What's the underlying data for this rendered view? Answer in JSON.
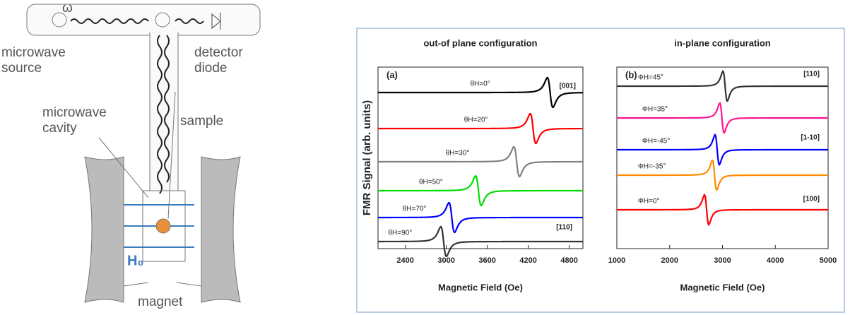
{
  "diagram": {
    "labels": {
      "omega": "ω",
      "source": "microwave\nsource",
      "detector": "detector\ndiode",
      "cavity": "microwave\ncavity",
      "sample": "sample",
      "field": "H₀",
      "magnet": "magnet"
    }
  },
  "chart_data": [
    {
      "type": "line",
      "title": "out-of plane configuration",
      "panel": "(a)",
      "xlabel": "Magnetic Field (Oe)",
      "ylabel": "FMR Signal (arb. units)",
      "xlim": [
        2000,
        5000
      ],
      "xticks": [
        2400,
        3000,
        3600,
        4200,
        4800
      ],
      "annotations": [
        "[001]",
        "[110]"
      ],
      "series": [
        {
          "name": "θH=0°",
          "color": "#000000",
          "values": [
            4520
          ]
        },
        {
          "name": "θH=20°",
          "color": "#ff0000",
          "values": [
            4270
          ]
        },
        {
          "name": "θH=30°",
          "color": "#808080",
          "values": [
            4030
          ]
        },
        {
          "name": "θH=50°",
          "color": "#00dd00",
          "values": [
            3470
          ]
        },
        {
          "name": "θH=70°",
          "color": "#0000ff",
          "values": [
            3080
          ]
        },
        {
          "name": "θH=90°",
          "color": "#333333",
          "values": [
            2960
          ]
        }
      ]
    },
    {
      "type": "line",
      "title": "in-plane configuration",
      "panel": "(b)",
      "xlabel": "Magnetic Field (Oe)",
      "xlim": [
        1000,
        5000
      ],
      "xticks": [
        1000,
        2000,
        3000,
        4000,
        5000
      ],
      "annotations": [
        "[110]",
        "[1-10]",
        "[100]"
      ],
      "series": [
        {
          "name": "ΦH=45°",
          "color": "#333333",
          "values": [
            3050
          ]
        },
        {
          "name": "ΦH=35°",
          "color": "#ff1493",
          "values": [
            2990
          ]
        },
        {
          "name": "ΦH=-45°",
          "color": "#0000ff",
          "values": [
            2900
          ]
        },
        {
          "name": "ΦH=-35°",
          "color": "#ff8c00",
          "values": [
            2850
          ]
        },
        {
          "name": "ΦH=0°",
          "color": "#ff0000",
          "values": [
            2700
          ]
        }
      ]
    }
  ]
}
